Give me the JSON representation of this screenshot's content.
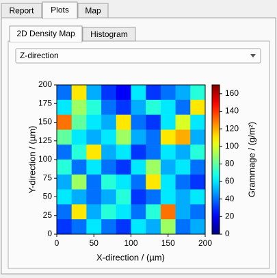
{
  "tabs": {
    "items": [
      "Report",
      "Plots",
      "Map"
    ],
    "active": 1
  },
  "subtabs": {
    "items": [
      "2D Density Map",
      "Histogram"
    ],
    "active": 0
  },
  "dropdown": {
    "selected": "Z-direction"
  },
  "chart_data": {
    "type": "heatmap",
    "xlabel": "X-direction / (µm)",
    "ylabel": "Y-direction / (µm)",
    "colorbar_label": "Grammage / (g/m²)",
    "colormap": "jet",
    "xlim": [
      0,
      200
    ],
    "ylim": [
      0,
      200
    ],
    "xticks": [
      0,
      50,
      100,
      150,
      200
    ],
    "yticks": [
      0,
      25,
      50,
      75,
      100,
      125,
      150,
      175,
      200
    ],
    "clim": [
      0,
      170
    ],
    "cticks": [
      0,
      20,
      40,
      60,
      80,
      100,
      120,
      140,
      160
    ],
    "z": [
      [
        40,
        110,
        50,
        30,
        20,
        60,
        30,
        40,
        50,
        70
      ],
      [
        60,
        90,
        70,
        40,
        30,
        50,
        70,
        60,
        40,
        110
      ],
      [
        130,
        80,
        60,
        50,
        110,
        40,
        30,
        60,
        100,
        60
      ],
      [
        80,
        60,
        50,
        60,
        90,
        50,
        40,
        110,
        120,
        50
      ],
      [
        40,
        70,
        110,
        50,
        60,
        30,
        40,
        60,
        50,
        70
      ],
      [
        70,
        40,
        60,
        40,
        30,
        60,
        90,
        50,
        60,
        40
      ],
      [
        50,
        90,
        40,
        70,
        60,
        40,
        110,
        60,
        40,
        30
      ],
      [
        60,
        50,
        40,
        50,
        70,
        30,
        40,
        60,
        50,
        60
      ],
      [
        40,
        110,
        50,
        70,
        60,
        40,
        70,
        130,
        50,
        40
      ],
      [
        30,
        40,
        60,
        40,
        30,
        60,
        50,
        90,
        40,
        50
      ]
    ]
  }
}
